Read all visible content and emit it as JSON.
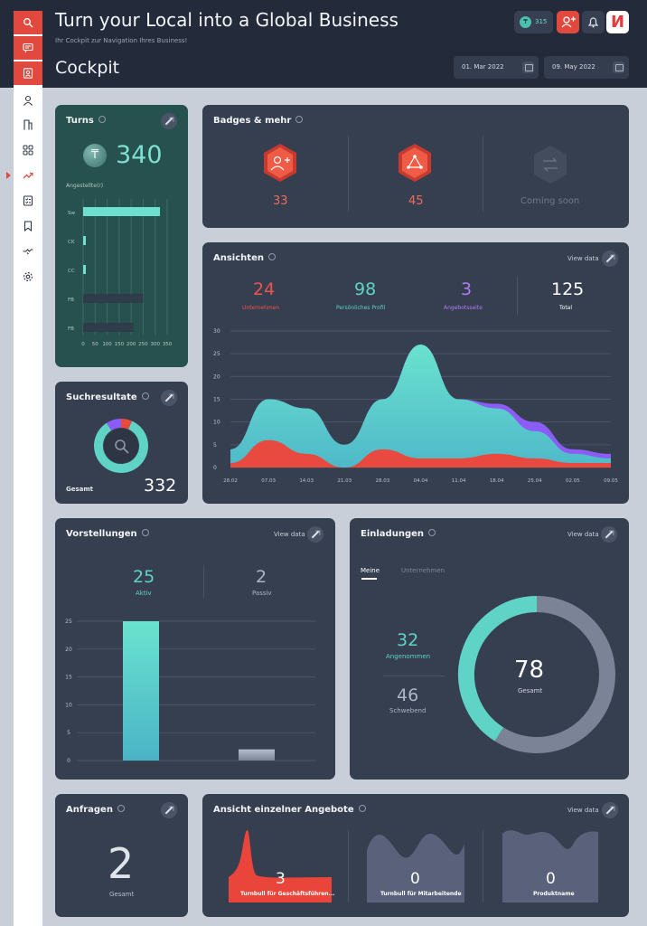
{
  "header": {
    "title": "Turn your Local into a Global Business",
    "subtitle": "Ihr Cockpit zur Navigation Ihres Business!",
    "page_title": "Cockpit",
    "date_from": "01. Mar 2022",
    "date_to": "09. May 2022",
    "coins": "315",
    "brand_letter": "И"
  },
  "sidebar": {
    "items": [
      "search-icon",
      "chat-icon",
      "contact-card-icon",
      "user-icon",
      "building-icon",
      "grid-icon",
      "trending-icon",
      "checklist-icon",
      "bookmark-icon",
      "handshake-icon",
      "settings-icon"
    ],
    "active": "trending-icon"
  },
  "turns": {
    "title": "Turns",
    "value": "340",
    "coin_symbol": "₸",
    "axis_label": "Angestellte(r)",
    "categories": [
      "Sw",
      "CK",
      "CC",
      "FB",
      "FB"
    ],
    "values": [
      320,
      5,
      5,
      250,
      210
    ],
    "ticks": [
      "0",
      "50",
      "100",
      "150",
      "200",
      "250",
      "300",
      "350"
    ],
    "xmax": 350
  },
  "badges": {
    "title": "Badges & mehr",
    "items": [
      {
        "value": "33",
        "icon": "add-user-badge-icon"
      },
      {
        "value": "45",
        "icon": "network-badge-icon"
      },
      {
        "value": "Coming soon",
        "icon": "swap-badge-icon"
      }
    ]
  },
  "ansichten": {
    "title": "Ansichten",
    "view_data": "View data",
    "stats": [
      {
        "value": "24",
        "label": "Unternehmen",
        "color": "#ef5350"
      },
      {
        "value": "98",
        "label": "Persönliches Profil",
        "color": "#5fd3c6"
      },
      {
        "value": "3",
        "label": "Angebotsseite",
        "color": "#b17cf2"
      },
      {
        "value": "125",
        "label": "Total",
        "color": "#ffffff"
      }
    ]
  },
  "suche": {
    "title": "Suchresultate",
    "total_label": "Gesamt",
    "total": "332"
  },
  "vorstellungen": {
    "title": "Vorstellungen",
    "view_data": "View data",
    "aktiv_value": "25",
    "aktiv_label": "Aktiv",
    "passiv_value": "2",
    "passiv_label": "Passiv"
  },
  "einladungen": {
    "title": "Einladungen",
    "view_data": "View data",
    "tab_active": "Meine",
    "tab_inactive": "Unternehmen",
    "accepted_value": "32",
    "accepted_label": "Angenommen",
    "pending_value": "46",
    "pending_label": "Schwebend",
    "total_value": "78",
    "total_label": "Gesamt"
  },
  "anfragen": {
    "title": "Anfragen",
    "value": "2",
    "label": "Gesamt"
  },
  "angebote": {
    "title": "Ansicht einzelner Angebote",
    "view_data": "View data",
    "items": [
      {
        "value": "3",
        "label": "Turnbull für Geschäftsführen..."
      },
      {
        "value": "0",
        "label": "Turnbull für Mitarbeitende"
      },
      {
        "value": "0",
        "label": "Produktname"
      }
    ]
  },
  "chart_data": [
    {
      "type": "bar",
      "title": "Turns",
      "ylabel": "Angestellte(r)",
      "categories": [
        "Sw",
        "CK",
        "CC",
        "FB",
        "FB"
      ],
      "values": [
        320,
        5,
        5,
        250,
        210
      ],
      "xlim": [
        0,
        350
      ]
    },
    {
      "type": "area",
      "title": "Ansichten",
      "x": [
        "28.02",
        "07.03",
        "14.03",
        "21.03",
        "28.03",
        "04.04",
        "11.04",
        "18.04",
        "25.04",
        "02.05",
        "09.05"
      ],
      "ylim": [
        0,
        30
      ],
      "yticks": [
        "0",
        "5",
        "10",
        "15",
        "20",
        "25",
        "30"
      ],
      "series": [
        {
          "name": "Persönliches Profil",
          "color": "#5fd3c6",
          "values": [
            4,
            15,
            13,
            5,
            15,
            27,
            15,
            13,
            8,
            3,
            2
          ]
        },
        {
          "name": "Angebotsseite",
          "color": "#8b5cf6",
          "values": [
            4,
            15,
            13,
            5,
            15,
            27,
            15,
            14,
            10,
            4,
            3
          ]
        },
        {
          "name": "Unternehmen",
          "color": "#e94a3f",
          "values": [
            1,
            6,
            3,
            0,
            4,
            2,
            2,
            3,
            2,
            1,
            1
          ]
        }
      ]
    },
    {
      "type": "pie",
      "title": "Suchresultate",
      "values": [
        280,
        30,
        22
      ],
      "colors": [
        "#5fd3c6",
        "#8b5cf6",
        "#e94a3f"
      ]
    },
    {
      "type": "bar",
      "title": "Vorstellungen",
      "categories": [
        "Aktiv",
        "Passiv"
      ],
      "values": [
        25,
        2
      ],
      "ylim": [
        0,
        25
      ],
      "yticks": [
        "0",
        "5",
        "10",
        "15",
        "20",
        "25"
      ]
    },
    {
      "type": "pie",
      "title": "Einladungen",
      "values": [
        32,
        46
      ],
      "categories": [
        "Angenommen",
        "Schwebend"
      ],
      "colors": [
        "#5fd3c6",
        "#7b8496"
      ]
    }
  ]
}
